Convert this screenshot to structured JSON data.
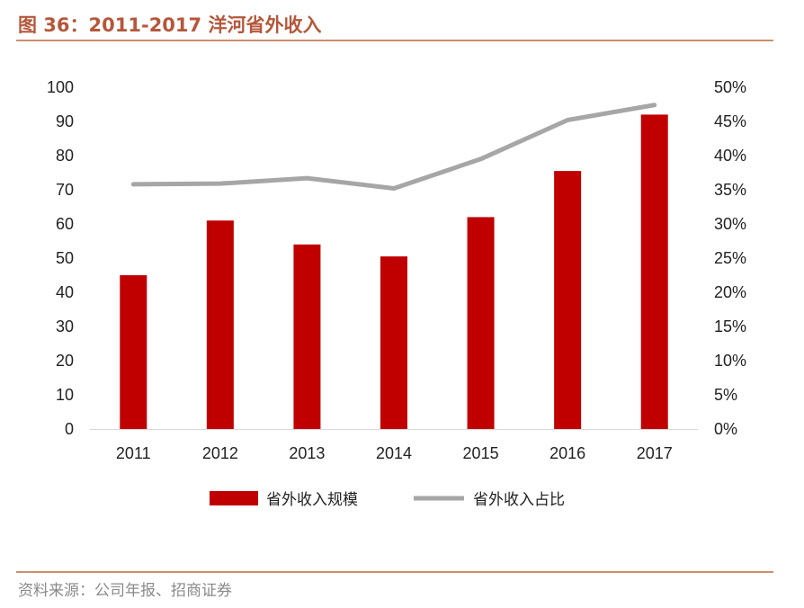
{
  "header": {
    "title": "图 36：2011-2017 洋河省外收入"
  },
  "footer": {
    "source": "资料来源：公司年报、招商证券"
  },
  "colors": {
    "bar": "#c00000",
    "line": "#a6a6a6",
    "axis": "#d9d9d9",
    "accent": "#b5573a"
  },
  "chart_data": {
    "type": "bar",
    "categories": [
      "2011",
      "2012",
      "2013",
      "2014",
      "2015",
      "2016",
      "2017"
    ],
    "series": [
      {
        "name": "省外收入规模",
        "type": "bar",
        "axis": "left",
        "values": [
          45,
          61,
          54,
          50.5,
          62,
          75.5,
          92
        ]
      },
      {
        "name": "省外收入占比",
        "type": "line",
        "axis": "right",
        "values": [
          35.8,
          35.9,
          36.7,
          35.2,
          39.5,
          45.2,
          47.4
        ]
      }
    ],
    "y_left": {
      "min": 0,
      "max": 100,
      "ticks": [
        "0",
        "10",
        "20",
        "30",
        "40",
        "50",
        "60",
        "70",
        "80",
        "90",
        "100"
      ]
    },
    "y_right": {
      "min": 0,
      "max": 50,
      "ticks": [
        "0%",
        "5%",
        "10%",
        "15%",
        "20%",
        "25%",
        "30%",
        "35%",
        "40%",
        "45%",
        "50%"
      ]
    },
    "grid": false,
    "legend_position": "bottom"
  }
}
